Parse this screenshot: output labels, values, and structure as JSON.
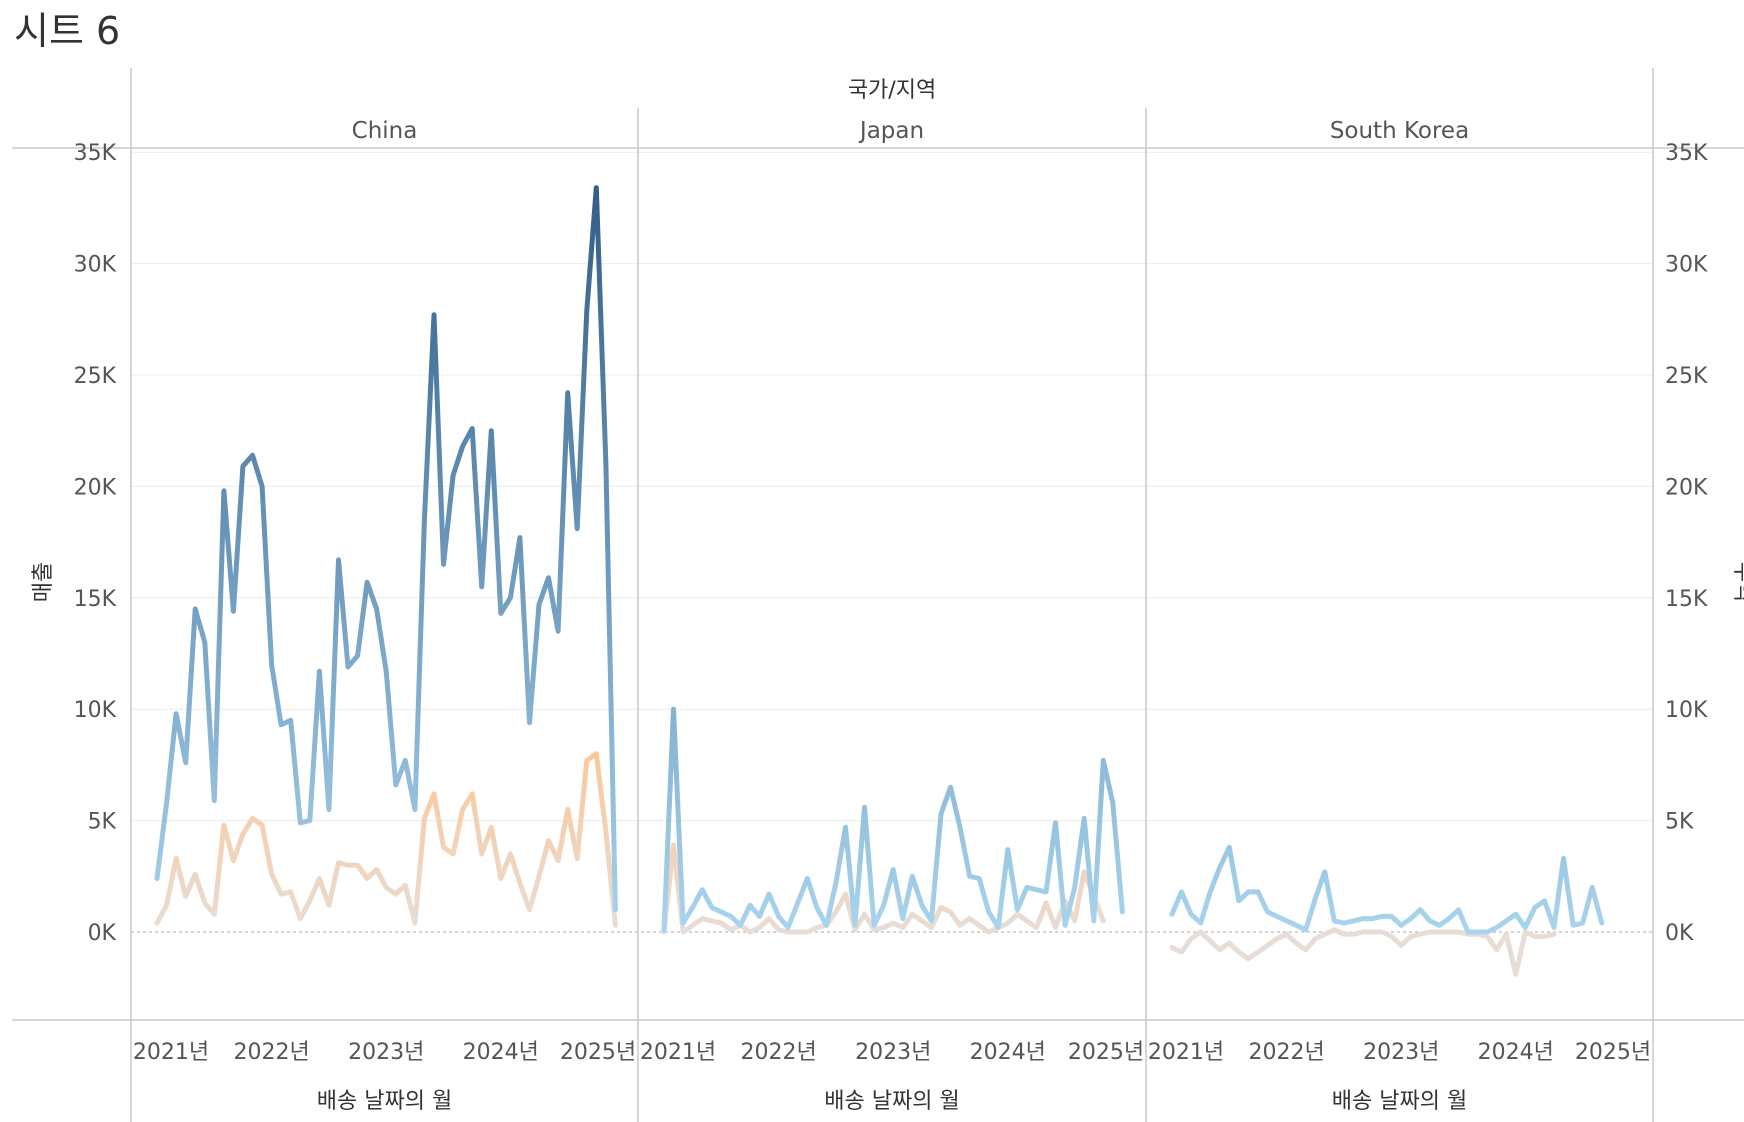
{
  "sheet_title": "시트 6",
  "colors": {
    "sales_low": "#a9d4ee",
    "sales_high": "#2f5b88",
    "profit_low": "#e7ddd6",
    "profit_high": "#fcc898",
    "grid": "#ececec",
    "divider": "#c8c8c8",
    "text": "#555555"
  },
  "chart_data": {
    "type": "line",
    "title": "",
    "column_header": "국가/지역",
    "xlabel": "배송 날짜의 월",
    "ylabel_left": "매출",
    "ylabel_right": "수익",
    "ylim": [
      -4000,
      36000
    ],
    "y_ticks": [
      0,
      5000,
      10000,
      15000,
      20000,
      25000,
      30000,
      35000
    ],
    "y_tick_labels": [
      "0K",
      "5K",
      "10K",
      "15K",
      "20K",
      "25K",
      "30K",
      "35K"
    ],
    "x_tick_labels": [
      "2021년",
      "2022년",
      "2023년",
      "2024년",
      "2025년"
    ],
    "x_tick_months": [
      0,
      12,
      24,
      36,
      48
    ],
    "grid": true,
    "panels": [
      {
        "country": "China",
        "sales": [
          [
            0,
            2400
          ],
          [
            1,
            5800
          ],
          [
            2,
            9800
          ],
          [
            3,
            7600
          ],
          [
            4,
            14500
          ],
          [
            5,
            13000
          ],
          [
            6,
            5900
          ],
          [
            7,
            19800
          ],
          [
            8,
            14400
          ],
          [
            9,
            20900
          ],
          [
            10,
            21400
          ],
          [
            11,
            20000
          ],
          [
            12,
            12000
          ],
          [
            13,
            9300
          ],
          [
            14,
            9500
          ],
          [
            15,
            4900
          ],
          [
            16,
            5000
          ],
          [
            17,
            11700
          ],
          [
            18,
            5500
          ],
          [
            19,
            16700
          ],
          [
            20,
            11900
          ],
          [
            21,
            12400
          ],
          [
            22,
            15700
          ],
          [
            23,
            14500
          ],
          [
            24,
            11700
          ],
          [
            25,
            6600
          ],
          [
            26,
            7700
          ],
          [
            27,
            5500
          ],
          [
            28,
            18500
          ],
          [
            29,
            27700
          ],
          [
            30,
            16500
          ],
          [
            31,
            20500
          ],
          [
            32,
            21800
          ],
          [
            33,
            22600
          ],
          [
            34,
            15500
          ],
          [
            35,
            22500
          ],
          [
            36,
            14300
          ],
          [
            37,
            15000
          ],
          [
            38,
            17700
          ],
          [
            39,
            9400
          ],
          [
            40,
            14700
          ],
          [
            41,
            15900
          ],
          [
            42,
            13500
          ],
          [
            43,
            24200
          ],
          [
            44,
            18100
          ],
          [
            45,
            27900
          ],
          [
            46,
            33400
          ],
          [
            47,
            21000
          ],
          [
            48,
            1000
          ]
        ],
        "profit": [
          [
            0,
            400
          ],
          [
            1,
            1200
          ],
          [
            2,
            3300
          ],
          [
            3,
            1600
          ],
          [
            4,
            2600
          ],
          [
            5,
            1300
          ],
          [
            6,
            800
          ],
          [
            7,
            4800
          ],
          [
            8,
            3200
          ],
          [
            9,
            4400
          ],
          [
            10,
            5100
          ],
          [
            11,
            4800
          ],
          [
            12,
            2600
          ],
          [
            13,
            1700
          ],
          [
            14,
            1800
          ],
          [
            15,
            600
          ],
          [
            16,
            1400
          ],
          [
            17,
            2400
          ],
          [
            18,
            1200
          ],
          [
            19,
            3100
          ],
          [
            20,
            3000
          ],
          [
            21,
            3000
          ],
          [
            22,
            2400
          ],
          [
            23,
            2800
          ],
          [
            24,
            2000
          ],
          [
            25,
            1700
          ],
          [
            26,
            2100
          ],
          [
            27,
            400
          ],
          [
            28,
            5100
          ],
          [
            29,
            6200
          ],
          [
            30,
            3800
          ],
          [
            31,
            3500
          ],
          [
            32,
            5500
          ],
          [
            33,
            6200
          ],
          [
            34,
            3500
          ],
          [
            35,
            4700
          ],
          [
            36,
            2400
          ],
          [
            37,
            3500
          ],
          [
            38,
            2200
          ],
          [
            39,
            1000
          ],
          [
            40,
            2500
          ],
          [
            41,
            4100
          ],
          [
            42,
            3200
          ],
          [
            43,
            5500
          ],
          [
            44,
            3300
          ],
          [
            45,
            7700
          ],
          [
            46,
            8000
          ],
          [
            47,
            4500
          ],
          [
            48,
            300
          ]
        ]
      },
      {
        "country": "Japan",
        "sales": [
          [
            0,
            100
          ],
          [
            1,
            10000
          ],
          [
            2,
            400
          ],
          [
            3,
            1100
          ],
          [
            4,
            1900
          ],
          [
            5,
            1100
          ],
          [
            6,
            900
          ],
          [
            7,
            700
          ],
          [
            8,
            300
          ],
          [
            9,
            1200
          ],
          [
            10,
            700
          ],
          [
            11,
            1700
          ],
          [
            12,
            700
          ],
          [
            13,
            200
          ],
          [
            14,
            1300
          ],
          [
            15,
            2400
          ],
          [
            16,
            1100
          ],
          [
            17,
            300
          ],
          [
            18,
            2200
          ],
          [
            19,
            4700
          ],
          [
            20,
            300
          ],
          [
            21,
            5600
          ],
          [
            22,
            300
          ],
          [
            23,
            1200
          ],
          [
            24,
            2800
          ],
          [
            25,
            600
          ],
          [
            26,
            2500
          ],
          [
            27,
            1200
          ],
          [
            28,
            500
          ],
          [
            29,
            5300
          ],
          [
            30,
            6500
          ],
          [
            31,
            4700
          ],
          [
            32,
            2500
          ],
          [
            33,
            2400
          ],
          [
            34,
            900
          ],
          [
            35,
            200
          ],
          [
            36,
            3700
          ],
          [
            37,
            1000
          ],
          [
            38,
            2000
          ],
          [
            39,
            1900
          ],
          [
            40,
            1800
          ],
          [
            41,
            4900
          ],
          [
            42,
            300
          ],
          [
            43,
            2000
          ],
          [
            44,
            5100
          ],
          [
            45,
            500
          ],
          [
            46,
            7700
          ],
          [
            47,
            5800
          ],
          [
            48,
            900
          ]
        ],
        "profit": [
          [
            0,
            0
          ],
          [
            1,
            3900
          ],
          [
            2,
            0
          ],
          [
            3,
            300
          ],
          [
            4,
            600
          ],
          [
            5,
            500
          ],
          [
            6,
            400
          ],
          [
            7,
            100
          ],
          [
            8,
            300
          ],
          [
            9,
            0
          ],
          [
            10,
            200
          ],
          [
            11,
            600
          ],
          [
            12,
            100
          ],
          [
            13,
            0
          ],
          [
            14,
            0
          ],
          [
            15,
            0
          ],
          [
            16,
            200
          ],
          [
            17,
            300
          ],
          [
            18,
            900
          ],
          [
            19,
            1700
          ],
          [
            20,
            100
          ],
          [
            21,
            800
          ],
          [
            22,
            100
          ],
          [
            23,
            200
          ],
          [
            24,
            400
          ],
          [
            25,
            200
          ],
          [
            26,
            800
          ],
          [
            27,
            500
          ],
          [
            28,
            200
          ],
          [
            29,
            1100
          ],
          [
            30,
            900
          ],
          [
            31,
            300
          ],
          [
            32,
            600
          ],
          [
            33,
            300
          ],
          [
            34,
            0
          ],
          [
            35,
            200
          ],
          [
            36,
            400
          ],
          [
            37,
            800
          ],
          [
            38,
            500
          ],
          [
            39,
            200
          ],
          [
            40,
            1300
          ],
          [
            41,
            200
          ],
          [
            42,
            1400
          ],
          [
            43,
            500
          ],
          [
            44,
            2700
          ],
          [
            45,
            1600
          ],
          [
            46,
            500
          ]
        ]
      },
      {
        "country": "South Korea",
        "sales": [
          [
            0,
            800
          ],
          [
            1,
            1800
          ],
          [
            2,
            800
          ],
          [
            3,
            400
          ],
          [
            4,
            1800
          ],
          [
            5,
            2900
          ],
          [
            6,
            3800
          ],
          [
            7,
            1400
          ],
          [
            8,
            1800
          ],
          [
            9,
            1800
          ],
          [
            10,
            900
          ],
          [
            11,
            700
          ],
          [
            12,
            500
          ],
          [
            13,
            300
          ],
          [
            14,
            100
          ],
          [
            15,
            1500
          ],
          [
            16,
            2700
          ],
          [
            17,
            500
          ],
          [
            18,
            400
          ],
          [
            19,
            500
          ],
          [
            20,
            600
          ],
          [
            21,
            600
          ],
          [
            22,
            700
          ],
          [
            23,
            700
          ],
          [
            24,
            300
          ],
          [
            25,
            600
          ],
          [
            26,
            1000
          ],
          [
            27,
            500
          ],
          [
            28,
            300
          ],
          [
            29,
            600
          ],
          [
            30,
            1000
          ],
          [
            31,
            0
          ],
          [
            32,
            0
          ],
          [
            33,
            0
          ],
          [
            34,
            200
          ],
          [
            35,
            500
          ],
          [
            36,
            800
          ],
          [
            37,
            200
          ],
          [
            38,
            1100
          ],
          [
            39,
            1400
          ],
          [
            40,
            200
          ],
          [
            41,
            3300
          ],
          [
            42,
            300
          ],
          [
            43,
            400
          ],
          [
            44,
            2000
          ],
          [
            45,
            400
          ]
        ],
        "profit": [
          [
            0,
            -700
          ],
          [
            1,
            -900
          ],
          [
            2,
            -300
          ],
          [
            3,
            0
          ],
          [
            4,
            -400
          ],
          [
            5,
            -800
          ],
          [
            6,
            -500
          ],
          [
            7,
            -900
          ],
          [
            8,
            -1200
          ],
          [
            9,
            -900
          ],
          [
            10,
            -600
          ],
          [
            11,
            -300
          ],
          [
            12,
            -100
          ],
          [
            13,
            -500
          ],
          [
            14,
            -800
          ],
          [
            15,
            -300
          ],
          [
            16,
            -100
          ],
          [
            17,
            100
          ],
          [
            18,
            -100
          ],
          [
            19,
            -100
          ],
          [
            20,
            0
          ],
          [
            21,
            0
          ],
          [
            22,
            0
          ],
          [
            23,
            -200
          ],
          [
            24,
            -600
          ],
          [
            25,
            -200
          ],
          [
            26,
            -100
          ],
          [
            27,
            0
          ],
          [
            28,
            0
          ],
          [
            29,
            0
          ],
          [
            30,
            0
          ],
          [
            31,
            -100
          ],
          [
            32,
            -100
          ],
          [
            33,
            -200
          ],
          [
            34,
            -800
          ],
          [
            35,
            -100
          ],
          [
            36,
            -1900
          ],
          [
            37,
            0
          ],
          [
            38,
            -200
          ],
          [
            39,
            -200
          ],
          [
            40,
            -100
          ]
        ]
      }
    ]
  }
}
